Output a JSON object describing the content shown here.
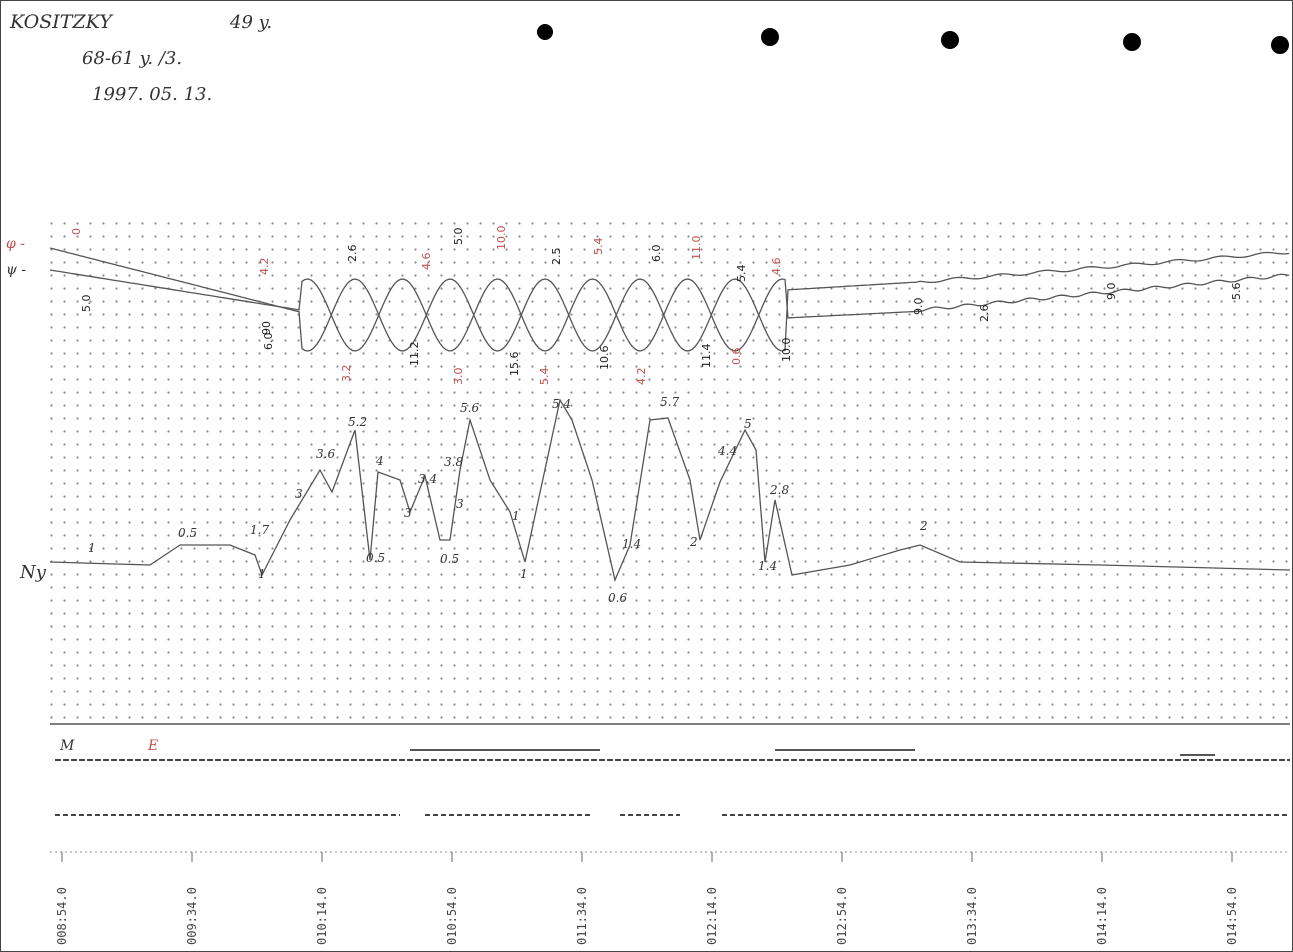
{
  "header": {
    "patient": "KOSITZKY",
    "age": "49 y.",
    "line2": "68-61 y. /3.",
    "date": "1997. 05. 13."
  },
  "trace_labels": [
    "φ -",
    "ψ -",
    "Ny"
  ],
  "upper_labels": [
    "5.0",
    "90",
    "2.6",
    "5.0",
    "2.5",
    "6.0",
    "5.4",
    "9.0",
    "11.2",
    "15.6",
    "10.6",
    "11.4",
    "10.0",
    "9.0",
    "5.6",
    "2.6",
    "6.0"
  ],
  "upper_red_labels": [
    "0",
    "4.2",
    "4.6",
    "10.0",
    "5.4",
    "11.0",
    "4.6",
    "3.2",
    "3.0",
    "5.4",
    "4.2",
    "0.6"
  ],
  "ny_peaks": [
    "1",
    "0.5",
    "1.7",
    "1",
    "3",
    "3.6",
    "5.2",
    "4",
    "0.5",
    "3",
    "3.4",
    "0.5",
    "3.8",
    "3",
    "5.6",
    "1",
    "1",
    "5.4",
    "0.6",
    "1.4",
    "5.7",
    "2",
    "4.4",
    "5",
    "2.8",
    "1.4",
    "2"
  ],
  "event_labels": [
    "M",
    "E"
  ],
  "time_labels": [
    "008:54.0",
    "009:34.0",
    "010:14.0",
    "010:54.0",
    "011:34.0",
    "012:14.0",
    "012:54.0",
    "013:34.0",
    "014:14.0",
    "014:54.0"
  ]
}
